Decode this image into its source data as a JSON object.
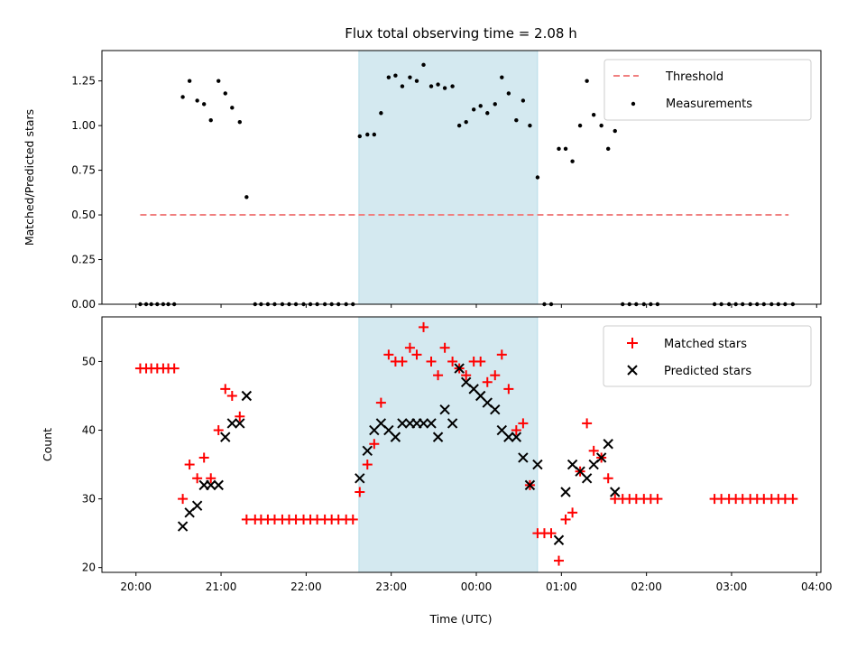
{
  "chart_data": {
    "title": "Flux total observing time = 2.08 h",
    "xlabel": "Time (UTC)",
    "xtick_labels": [
      "20:00",
      "21:00",
      "22:00",
      "23:00",
      "00:00",
      "01:00",
      "02:00",
      "03:00",
      "04:00"
    ],
    "x_units": "hours since 20:00 UTC",
    "xlim": [
      -0.4,
      8.05
    ],
    "shaded_interval": [
      2.62,
      4.72
    ],
    "colors": {
      "shade": "#d4e9f0",
      "threshold": "#f08080",
      "matched": "#ff0000",
      "predicted": "#000000",
      "measurement": "#000000"
    },
    "panels": [
      {
        "type": "scatter",
        "ylabel": "Matched/Predicted stars",
        "ylim": [
          0,
          1.42
        ],
        "yticks": [
          0,
          0.25,
          0.5,
          0.75,
          1.0,
          1.25
        ],
        "ytick_labels": [
          "0.00",
          "0.25",
          "0.50",
          "0.75",
          "1.00",
          "1.25"
        ],
        "legend_position": "upper right",
        "legend": [
          "Threshold",
          "Measurements"
        ],
        "threshold": {
          "name": "Threshold",
          "y": 0.5,
          "x_range": [
            0.05,
            7.67
          ],
          "style": "dashed"
        },
        "series": [
          {
            "name": "Measurements",
            "marker": "dot",
            "x": [
              0.05,
              0.12,
              0.18,
              0.25,
              0.32,
              0.38,
              0.45,
              0.55,
              0.63,
              0.72,
              0.8,
              0.88,
              0.97,
              1.05,
              1.13,
              1.22,
              1.3,
              1.4,
              1.47,
              1.55,
              1.63,
              1.72,
              1.8,
              1.88,
              1.97,
              2.05,
              2.13,
              2.22,
              2.3,
              2.38,
              2.47,
              2.55,
              2.63,
              2.72,
              2.8,
              2.88,
              2.97,
              3.05,
              3.13,
              3.22,
              3.3,
              3.38,
              3.47,
              3.55,
              3.63,
              3.72,
              3.8,
              3.88,
              3.97,
              4.05,
              4.13,
              4.22,
              4.3,
              4.38,
              4.47,
              4.55,
              4.63,
              4.72,
              4.8,
              4.88,
              4.97,
              5.05,
              5.13,
              5.22,
              5.3,
              5.38,
              5.47,
              5.55,
              5.63,
              5.72,
              5.8,
              5.88,
              5.97,
              6.05,
              6.13,
              6.8,
              6.88,
              6.97,
              7.05,
              7.13,
              7.22,
              7.3,
              7.38,
              7.47,
              7.55,
              7.63,
              7.72
            ],
            "y": [
              0,
              0,
              0,
              0,
              0,
              0,
              0,
              1.16,
              1.25,
              1.14,
              1.12,
              1.03,
              1.25,
              1.18,
              1.1,
              1.02,
              0.6,
              0,
              0,
              0,
              0,
              0,
              0,
              0,
              0,
              0,
              0,
              0,
              0,
              0,
              0,
              0,
              0.94,
              0.95,
              0.95,
              1.07,
              1.27,
              1.28,
              1.22,
              1.27,
              1.25,
              1.34,
              1.22,
              1.23,
              1.21,
              1.22,
              1.0,
              1.02,
              1.09,
              1.11,
              1.07,
              1.12,
              1.27,
              1.18,
              1.03,
              1.14,
              1.0,
              0.71,
              0,
              0,
              0.87,
              0.87,
              0.8,
              1.0,
              1.25,
              1.06,
              1.0,
              0.87,
              0.97,
              0,
              0,
              0,
              0,
              0,
              0,
              0,
              0,
              0,
              0,
              0,
              0,
              0,
              0,
              0,
              0,
              0,
              0
            ]
          }
        ]
      },
      {
        "type": "scatter",
        "ylabel": "Count",
        "ylim": [
          19.3,
          56.5
        ],
        "yticks": [
          20,
          30,
          40,
          50
        ],
        "ytick_labels": [
          "20",
          "30",
          "40",
          "50"
        ],
        "legend_position": "upper right",
        "legend": [
          "Matched stars",
          "Predicted stars"
        ],
        "series": [
          {
            "name": "Matched stars",
            "marker": "plus",
            "x": [
              0.05,
              0.12,
              0.18,
              0.25,
              0.32,
              0.38,
              0.45,
              0.55,
              0.63,
              0.72,
              0.8,
              0.88,
              0.97,
              1.05,
              1.13,
              1.22,
              1.3,
              1.4,
              1.47,
              1.55,
              1.63,
              1.72,
              1.8,
              1.88,
              1.97,
              2.05,
              2.13,
              2.22,
              2.3,
              2.38,
              2.47,
              2.55,
              2.63,
              2.72,
              2.8,
              2.88,
              2.97,
              3.05,
              3.13,
              3.22,
              3.3,
              3.38,
              3.47,
              3.55,
              3.63,
              3.72,
              3.8,
              3.88,
              3.97,
              4.05,
              4.13,
              4.22,
              4.3,
              4.38,
              4.47,
              4.55,
              4.63,
              4.72,
              4.8,
              4.88,
              4.97,
              5.05,
              5.13,
              5.22,
              5.3,
              5.38,
              5.47,
              5.55,
              5.63,
              5.72,
              5.8,
              5.88,
              5.97,
              6.05,
              6.13,
              6.8,
              6.88,
              6.97,
              7.05,
              7.13,
              7.22,
              7.3,
              7.38,
              7.47,
              7.55,
              7.63,
              7.72
            ],
            "y": [
              49,
              49,
              49,
              49,
              49,
              49,
              49,
              30,
              35,
              33,
              36,
              33,
              40,
              46,
              45,
              42,
              27,
              27,
              27,
              27,
              27,
              27,
              27,
              27,
              27,
              27,
              27,
              27,
              27,
              27,
              27,
              27,
              31,
              35,
              38,
              44,
              51,
              50,
              50,
              52,
              51,
              55,
              50,
              48,
              52,
              50,
              49,
              48,
              50,
              50,
              47,
              48,
              51,
              46,
              40,
              41,
              32,
              25,
              25,
              25,
              21,
              27,
              28,
              34,
              41,
              37,
              36,
              33,
              30,
              30,
              30,
              30,
              30,
              30,
              30,
              30,
              30,
              30,
              30,
              30,
              30,
              30,
              30,
              30,
              30,
              30,
              30
            ]
          },
          {
            "name": "Predicted stars",
            "marker": "x",
            "x": [
              0.55,
              0.63,
              0.72,
              0.8,
              0.88,
              0.97,
              1.05,
              1.13,
              1.22,
              1.3,
              2.63,
              2.72,
              2.8,
              2.88,
              2.97,
              3.05,
              3.13,
              3.22,
              3.3,
              3.38,
              3.47,
              3.55,
              3.63,
              3.72,
              3.8,
              3.88,
              3.97,
              4.05,
              4.13,
              4.22,
              4.3,
              4.38,
              4.47,
              4.55,
              4.63,
              4.72,
              4.97,
              5.05,
              5.13,
              5.22,
              5.3,
              5.38,
              5.47,
              5.55,
              5.63
            ],
            "y": [
              26,
              28,
              29,
              32,
              32,
              32,
              39,
              41,
              41,
              45,
              33,
              37,
              40,
              41,
              40,
              39,
              41,
              41,
              41,
              41,
              41,
              39,
              43,
              41,
              49,
              47,
              46,
              45,
              44,
              43,
              40,
              39,
              39,
              36,
              32,
              35,
              24,
              31,
              35,
              34,
              33,
              35,
              36,
              38,
              31
            ]
          }
        ]
      }
    ]
  }
}
